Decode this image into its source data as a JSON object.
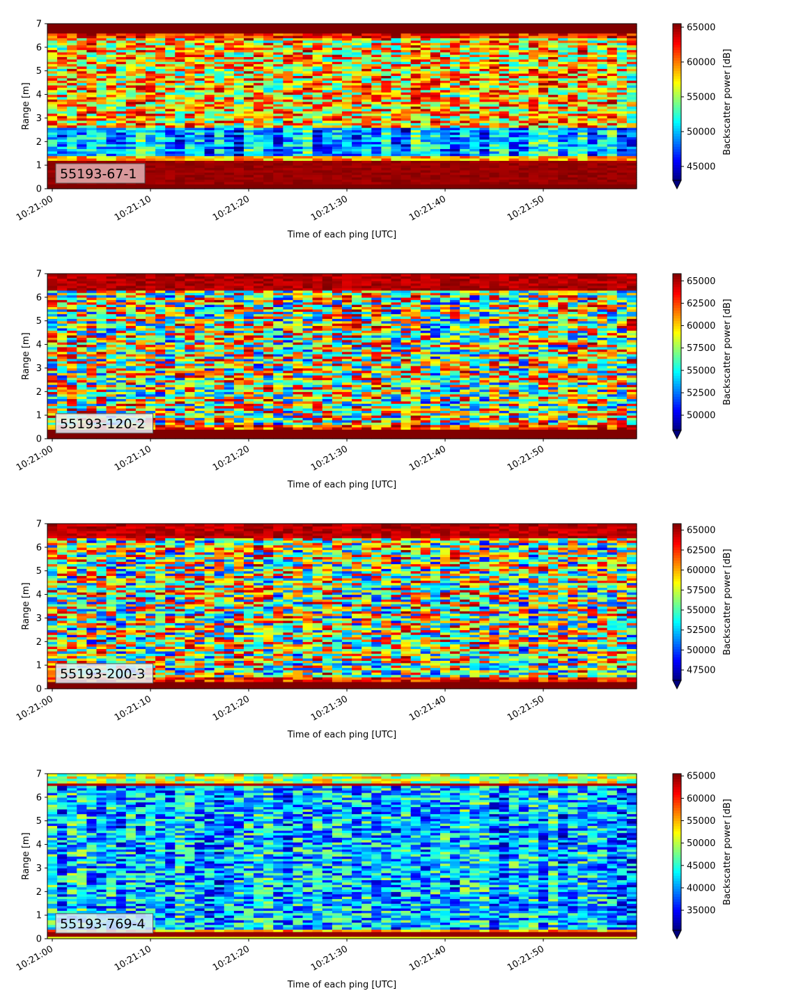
{
  "chart_data": [
    {
      "type": "heatmap",
      "channel_label": "55193-67-1",
      "xlabel": "Time of each ping [UTC]",
      "ylabel": "Range [m]",
      "colorbar_label": "Backscatter power [dB]",
      "colormap": "jet",
      "xticks": [
        "10:21:00",
        "10:21:10",
        "10:21:20",
        "10:21:30",
        "10:21:40",
        "10:21:50"
      ],
      "x_range_seconds": [
        -0.5,
        59.5
      ],
      "ylim": [
        0,
        7
      ],
      "yticks": [
        "0",
        "1",
        "2",
        "3",
        "4",
        "5",
        "6",
        "7"
      ],
      "color_range": [
        43000,
        65500
      ],
      "colorbar_ticks": [
        "45000",
        "50000",
        "55000",
        "60000",
        "65000"
      ],
      "colorbar_tick_values": [
        45000,
        50000,
        55000,
        60000,
        65000
      ],
      "label_box_color": "#e3b3b6",
      "profile_notes": "near-surface band 0-1.2 m saturated red; low (blue) band 1.5-2.5 m; high variable 3-6.5 m; saturated top above 6.5 m"
    },
    {
      "type": "heatmap",
      "channel_label": "55193-120-2",
      "xlabel": "Time of each ping [UTC]",
      "ylabel": "Range [m]",
      "colorbar_label": "Backscatter power [dB]",
      "colormap": "jet",
      "xticks": [
        "10:21:00",
        "10:21:10",
        "10:21:20",
        "10:21:30",
        "10:21:40",
        "10:21:50"
      ],
      "x_range_seconds": [
        -0.5,
        59.5
      ],
      "ylim": [
        0,
        7
      ],
      "yticks": [
        "0",
        "1",
        "2",
        "3",
        "4",
        "5",
        "6",
        "7"
      ],
      "color_range": [
        48300,
        65800
      ],
      "colorbar_ticks": [
        "50000",
        "52500",
        "55000",
        "57500",
        "60000",
        "62500",
        "65000"
      ],
      "colorbar_tick_values": [
        50000,
        52500,
        55000,
        57500,
        60000,
        62500,
        65000
      ],
      "label_box_color": "#e6eef8",
      "profile_notes": "saturated band 0-0.4 m and above 6.3 m; mixed cyan/yellow/red elsewhere"
    },
    {
      "type": "heatmap",
      "channel_label": "55193-200-3",
      "xlabel": "Time of each ping [UTC]",
      "ylabel": "Range [m]",
      "colorbar_label": "Backscatter power [dB]",
      "colormap": "jet",
      "xticks": [
        "10:21:00",
        "10:21:10",
        "10:21:20",
        "10:21:30",
        "10:21:40",
        "10:21:50"
      ],
      "x_range_seconds": [
        -0.5,
        59.5
      ],
      "ylim": [
        0,
        7
      ],
      "yticks": [
        "0",
        "1",
        "2",
        "3",
        "4",
        "5",
        "6",
        "7"
      ],
      "color_range": [
        46200,
        65800
      ],
      "colorbar_ticks": [
        "47500",
        "50000",
        "52500",
        "55000",
        "57500",
        "60000",
        "62500",
        "65000"
      ],
      "colorbar_tick_values": [
        47500,
        50000,
        52500,
        55000,
        57500,
        60000,
        62500,
        65000
      ],
      "label_box_color": "#e6eef8",
      "profile_notes": "saturated band 0-0.3 m and above 6.4 m; mixed elsewhere"
    },
    {
      "type": "heatmap",
      "channel_label": "55193-769-4",
      "xlabel": "Time of each ping [UTC]",
      "ylabel": "Range [m]",
      "colorbar_label": "Backscatter power [dB]",
      "colormap": "jet",
      "xticks": [
        "10:21:00",
        "10:21:10",
        "10:21:20",
        "10:21:30",
        "10:21:40",
        "10:21:50"
      ],
      "x_range_seconds": [
        -0.5,
        59.5
      ],
      "ylim": [
        0,
        7
      ],
      "yticks": [
        "0",
        "1",
        "2",
        "3",
        "4",
        "5",
        "6",
        "7"
      ],
      "color_range": [
        30500,
        65500
      ],
      "colorbar_ticks": [
        "35000",
        "40000",
        "45000",
        "50000",
        "55000",
        "60000",
        "65000"
      ],
      "colorbar_tick_values": [
        35000,
        40000,
        45000,
        50000,
        55000,
        60000,
        65000
      ],
      "label_box_color": "#dcebf6",
      "profile_notes": "mostly blue/cyan; thin red line near 0.3 m and 6.5 m"
    }
  ]
}
